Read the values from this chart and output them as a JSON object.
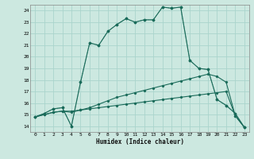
{
  "xlabel": "Humidex (Indice chaleur)",
  "bg_color": "#cce8e0",
  "line_color": "#1a6b5a",
  "grid_color": "#aad4cc",
  "xlim": [
    -0.5,
    23.5
  ],
  "ylim": [
    13.5,
    24.5
  ],
  "xticks": [
    0,
    1,
    2,
    3,
    4,
    5,
    6,
    7,
    8,
    9,
    10,
    11,
    12,
    13,
    14,
    15,
    16,
    17,
    18,
    19,
    20,
    21,
    22,
    23
  ],
  "yticks": [
    14,
    15,
    16,
    17,
    18,
    19,
    20,
    21,
    22,
    23,
    24
  ],
  "line1_x": [
    0,
    1,
    2,
    3,
    4,
    5,
    6,
    7,
    8,
    9,
    10,
    11,
    12,
    13,
    14,
    15,
    16,
    17,
    18,
    19,
    20,
    21,
    22,
    23
  ],
  "line1_y": [
    14.8,
    15.1,
    15.5,
    15.6,
    14.0,
    17.8,
    21.2,
    21.0,
    22.2,
    22.8,
    23.3,
    23.0,
    23.2,
    23.2,
    24.3,
    24.2,
    24.3,
    19.7,
    19.0,
    18.9,
    16.3,
    15.8,
    15.1,
    13.9
  ],
  "line2_x": [
    0,
    1,
    2,
    3,
    4,
    5,
    6,
    7,
    8,
    9,
    10,
    11,
    12,
    13,
    14,
    15,
    16,
    17,
    18,
    19,
    20,
    21,
    22,
    23
  ],
  "line2_y": [
    14.8,
    15.0,
    15.2,
    15.3,
    15.3,
    15.4,
    15.5,
    15.6,
    15.7,
    15.8,
    15.9,
    16.0,
    16.1,
    16.2,
    16.3,
    16.4,
    16.5,
    16.6,
    16.7,
    16.8,
    16.9,
    17.0,
    14.9,
    13.9
  ],
  "line3_x": [
    0,
    1,
    2,
    3,
    4,
    5,
    6,
    7,
    8,
    9,
    10,
    11,
    12,
    13,
    14,
    15,
    16,
    17,
    18,
    19,
    20,
    21,
    22,
    23
  ],
  "line3_y": [
    14.8,
    15.0,
    15.2,
    15.3,
    15.2,
    15.4,
    15.6,
    15.9,
    16.2,
    16.5,
    16.7,
    16.9,
    17.1,
    17.3,
    17.5,
    17.7,
    17.9,
    18.1,
    18.3,
    18.5,
    18.3,
    17.8,
    14.9,
    13.9
  ],
  "line4_x": [
    0,
    1,
    2,
    3,
    4,
    5,
    6,
    7,
    8,
    9,
    10,
    11,
    12,
    13,
    14,
    15,
    16,
    17,
    18,
    19,
    20,
    21,
    22,
    23
  ],
  "line4_y": [
    14.8,
    15.1,
    15.5,
    15.6,
    14.0,
    17.8,
    21.2,
    21.0,
    22.2,
    22.8,
    23.3,
    23.0,
    23.2,
    23.2,
    24.3,
    24.2,
    24.3,
    19.7,
    19.0,
    18.9,
    16.3,
    15.8,
    15.1,
    13.9
  ]
}
